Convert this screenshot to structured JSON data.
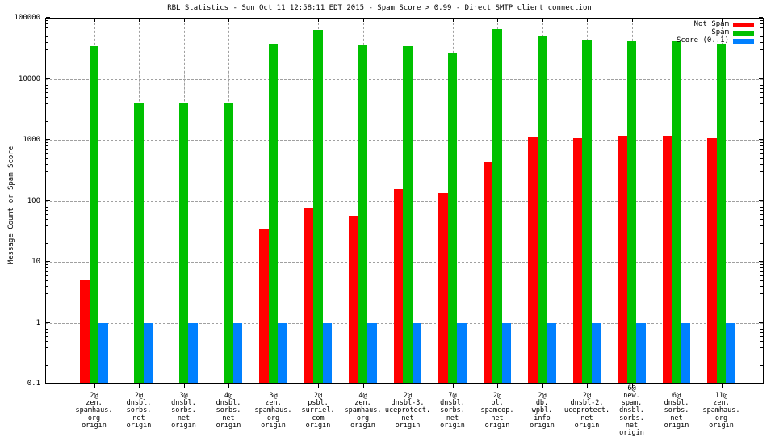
{
  "title": "RBL Statistics - Sun Oct 11 12:58:11 EDT 2015 - Spam Score > 0.99 - Direct SMTP client connection",
  "ylabel": "Message Count or Spam Score",
  "colors": {
    "background": "#ffffff",
    "axis": "#000000",
    "grid": "#a0a0a0",
    "not_spam": "#ff0000",
    "spam": "#00c000",
    "score": "#0080ff"
  },
  "chart_data": {
    "type": "bar",
    "y_scale": "log",
    "grid": true,
    "legend_position": "top-right-inside",
    "title": "RBL Statistics - Sun Oct 11 12:58:11 EDT 2015 - Spam Score > 0.99 - Direct SMTP client connection",
    "xlabel": "",
    "ylabel": "Message Count or Spam Score",
    "ylim": [
      0.1,
      100000
    ],
    "ytick_labels": [
      "100000",
      "10000",
      "1000",
      "100",
      "10",
      "1",
      "0.1"
    ],
    "categories": [
      [
        "2@",
        "zen.",
        "spamhaus.",
        "org",
        "origin"
      ],
      [
        "2@",
        "dnsbl.",
        "sorbs.",
        "net",
        "origin"
      ],
      [
        "3@",
        "dnsbl.",
        "sorbs.",
        "net",
        "origin"
      ],
      [
        "4@",
        "dnsbl.",
        "sorbs.",
        "net",
        "origin"
      ],
      [
        "3@",
        "zen.",
        "spamhaus.",
        "org",
        "origin"
      ],
      [
        "2@",
        "psbl.",
        "surriel.",
        "com",
        "origin"
      ],
      [
        "4@",
        "zen.",
        "spamhaus.",
        "org",
        "origin"
      ],
      [
        "2@",
        "dnsbl-3.",
        "uceprotect.",
        "net",
        "origin"
      ],
      [
        "7@",
        "dnsbl.",
        "sorbs.",
        "net",
        "origin"
      ],
      [
        "2@",
        "bl.",
        "spamcop.",
        "net",
        "origin"
      ],
      [
        "2@",
        "db.",
        "wpbl.",
        "info",
        "origin"
      ],
      [
        "2@",
        "dnsbl-2.",
        "uceprotect.",
        "net",
        "origin"
      ],
      [
        "6@",
        "new.",
        "spam.",
        "dnsbl.",
        "sorbs.",
        "net",
        "origin"
      ],
      [
        "6@",
        "dnsbl.",
        "sorbs.",
        "net",
        "origin"
      ],
      [
        "11@",
        "zen.",
        "spamhaus.",
        "org",
        "origin"
      ]
    ],
    "series": [
      {
        "name": "Not Spam",
        "color": "#ff0000",
        "values": [
          5,
          null,
          null,
          null,
          35,
          76,
          57,
          155,
          133,
          420,
          1100,
          1075,
          1150,
          1150,
          1050
        ]
      },
      {
        "name": "Spam",
        "color": "#00c000",
        "values": [
          34000,
          3900,
          3900,
          3900,
          37000,
          64000,
          35000,
          34000,
          27000,
          66000,
          50000,
          44000,
          41500,
          41500,
          37500
        ]
      },
      {
        "name": "Score (0..1)",
        "color": "#0080ff",
        "values": [
          1,
          1,
          1,
          1,
          1,
          1,
          1,
          1,
          1,
          1,
          1,
          1,
          1,
          1,
          1
        ]
      }
    ]
  }
}
